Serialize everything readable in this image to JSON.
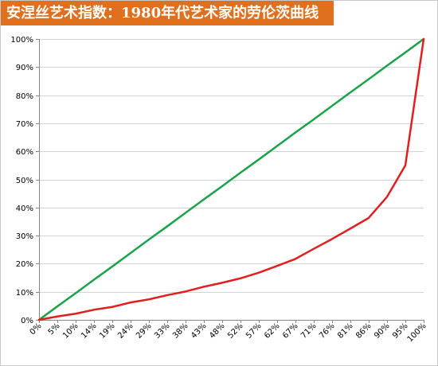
{
  "title": "安涅丝艺术指数：1980年代艺术家的劳伦茨曲线",
  "chart_data": {
    "type": "line",
    "title": "安涅丝艺术指数：1980年代艺术家的劳伦茨曲线",
    "xlabel": "",
    "ylabel": "",
    "x_ticks": [
      "0%",
      "5%",
      "10%",
      "14%",
      "19%",
      "24%",
      "29%",
      "33%",
      "38%",
      "43%",
      "48%",
      "52%",
      "57%",
      "62%",
      "67%",
      "71%",
      "76%",
      "81%",
      "86%",
      "90%",
      "95%",
      "100%"
    ],
    "y_ticks": [
      "0%",
      "10%",
      "20%",
      "30%",
      "40%",
      "50%",
      "60%",
      "70%",
      "80%",
      "90%",
      "100%"
    ],
    "ylim": [
      0,
      100
    ],
    "grid": "horizontal",
    "legend": "none",
    "series": [
      {
        "color": "#1aa34a",
        "values": [
          0,
          4.8,
          9.5,
          14.3,
          19,
          23.8,
          28.6,
          33.3,
          38.1,
          42.9,
          47.6,
          52.4,
          57.1,
          61.9,
          66.7,
          71.4,
          76.2,
          81,
          85.7,
          90.5,
          95.2,
          100
        ]
      },
      {
        "color": "#e02020",
        "values": [
          0,
          1.2,
          2.2,
          3.6,
          4.6,
          6.2,
          7.3,
          8.8,
          10.1,
          11.8,
          13.2,
          14.8,
          16.8,
          19.2,
          21.7,
          25.3,
          28.8,
          32.5,
          36.3,
          43.8,
          55,
          100
        ]
      }
    ]
  }
}
